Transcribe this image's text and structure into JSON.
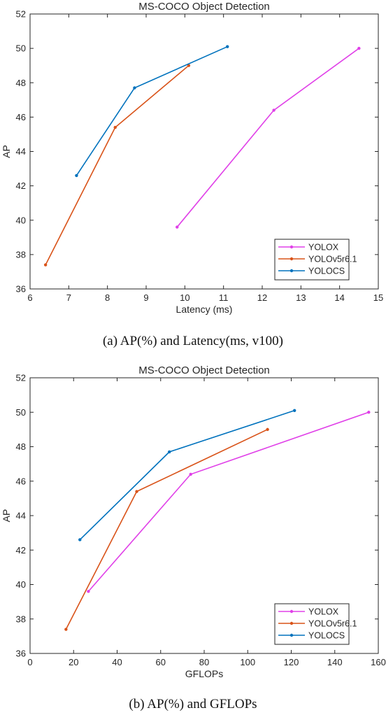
{
  "chart_data": [
    {
      "type": "line",
      "title": "MS-COCO Object Detection",
      "xlabel": "Latency (ms)",
      "ylabel": "AP",
      "xlim": [
        6,
        15
      ],
      "ylim": [
        36,
        52
      ],
      "xticks": [
        6,
        7,
        8,
        9,
        10,
        11,
        12,
        13,
        14,
        15
      ],
      "yticks": [
        36,
        38,
        40,
        42,
        44,
        46,
        48,
        50,
        52
      ],
      "legend_position": "bottom-right",
      "grid": false,
      "series": [
        {
          "name": "YOLOX",
          "color": "#e040e8",
          "x": [
            9.8,
            12.3,
            14.5
          ],
          "y": [
            39.6,
            46.4,
            50.0
          ]
        },
        {
          "name": "YOLOv5r6.1",
          "color": "#d95319",
          "x": [
            6.4,
            8.2,
            10.1
          ],
          "y": [
            37.4,
            45.4,
            49.0
          ]
        },
        {
          "name": "YOLOCS",
          "color": "#0072bd",
          "x": [
            7.2,
            8.7,
            11.1
          ],
          "y": [
            42.6,
            47.7,
            50.1
          ]
        }
      ],
      "caption": "(a) AP(%) and Latency(ms, v100)"
    },
    {
      "type": "line",
      "title": "MS-COCO Object Detection",
      "xlabel": "GFLOPs",
      "ylabel": "AP",
      "xlim": [
        0,
        160
      ],
      "ylim": [
        36,
        52
      ],
      "xticks": [
        0,
        20,
        40,
        60,
        80,
        100,
        120,
        140,
        160
      ],
      "yticks": [
        36,
        38,
        40,
        42,
        44,
        46,
        48,
        50,
        52
      ],
      "legend_position": "bottom-right",
      "grid": false,
      "series": [
        {
          "name": "YOLOX",
          "color": "#e040e8",
          "x": [
            26.8,
            73.8,
            155.6
          ],
          "y": [
            39.6,
            46.4,
            50.0
          ]
        },
        {
          "name": "YOLOv5r6.1",
          "color": "#d95319",
          "x": [
            16.5,
            49.0,
            109.1
          ],
          "y": [
            37.4,
            45.4,
            49.0
          ]
        },
        {
          "name": "YOLOCS",
          "color": "#0072bd",
          "x": [
            22.9,
            64.0,
            121.5
          ],
          "y": [
            42.6,
            47.7,
            50.1
          ]
        }
      ],
      "caption": "(b) AP(%) and GFLOPs"
    }
  ]
}
